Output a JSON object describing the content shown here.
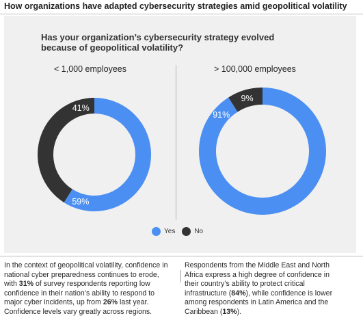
{
  "header": {
    "title": "How organizations have adapted cybersecurity strategies amid geopolitical volatility"
  },
  "question": "Has your organization’s cybersecurity strategy evolved because of geopolitical volatility?",
  "colors": {
    "yes": "#4b8ff2",
    "no": "#333333"
  },
  "chart_data": [
    {
      "type": "pie",
      "title": "< 1,000 employees",
      "categories": [
        "Yes",
        "No"
      ],
      "values": [
        59,
        41
      ],
      "labels": [
        "59%",
        "41%"
      ]
    },
    {
      "type": "pie",
      "title": "> 100,000 employees",
      "categories": [
        "Yes",
        "No"
      ],
      "values": [
        91,
        9
      ],
      "labels": [
        "91%",
        "9%"
      ]
    }
  ],
  "legend": {
    "yes": "Yes",
    "no": "No"
  },
  "left_text": {
    "p1": "In the context of geopolitical volatility, confidence in national cyber preparedness continues to erode, with ",
    "b1": "31%",
    "p2": " of survey respondents reporting low confidence in their nation’s ability to respond to major cyber incidents, up from ",
    "b2": "26%",
    "p3": " last year. Confidence levels vary greatly across regions."
  },
  "right_text": {
    "p1": "Respondents from the Middle East and North Africa express a high degree of confidence in their country’s ability to protect critical infrastructure (",
    "b1": "84%",
    "p2": "), while confidence is lower among respondents in Latin America and the Caribbean (",
    "b2": "13%",
    "p3": ")."
  }
}
